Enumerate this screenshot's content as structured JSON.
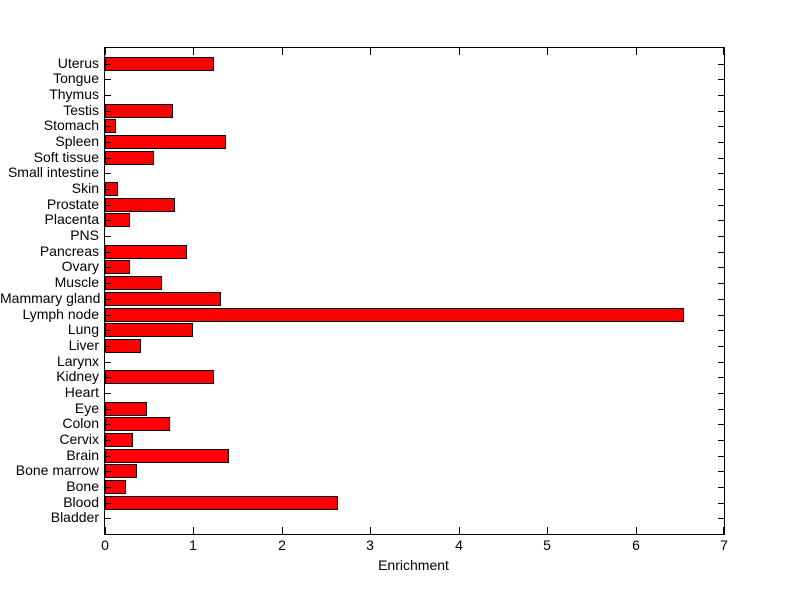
{
  "chart_data": {
    "type": "bar",
    "orientation": "horizontal",
    "xlabel": "Enrichment",
    "xlim": [
      0,
      7
    ],
    "xticks": [
      0,
      1,
      2,
      3,
      4,
      5,
      6,
      7
    ],
    "xtick_labels": [
      "0",
      "1",
      "2",
      "3",
      "4",
      "5",
      "6",
      "7"
    ],
    "grid": false,
    "bar_color": "#ff0000",
    "bar_edge_color": "#000000",
    "axis_color": "#000000",
    "background_color": "#ffffff",
    "categories_top_to_bottom": [
      "Uterus",
      "Tongue",
      "Thymus",
      "Testis",
      "Stomach",
      "Spleen",
      "Soft tissue",
      "Small intestine",
      "Skin",
      "Prostate",
      "Placenta",
      "PNS",
      "Pancreas",
      "Ovary",
      "Muscle",
      "Mammary gland",
      "Lymph node",
      "Lung",
      "Liver",
      "Larynx",
      "Kidney",
      "Heart",
      "Eye",
      "Colon",
      "Cervix",
      "Brain",
      "Bone marrow",
      "Bone",
      "Blood",
      "Bladder"
    ],
    "values_top_to_bottom": [
      1.23,
      0,
      0,
      0.77,
      0.12,
      1.37,
      0.55,
      0,
      0.15,
      0.79,
      0.28,
      0,
      0.93,
      0.28,
      0.65,
      1.31,
      6.55,
      1.0,
      0.41,
      0,
      1.23,
      0,
      0.48,
      0.73,
      0.32,
      1.4,
      0.36,
      0.24,
      2.63,
      0
    ]
  }
}
